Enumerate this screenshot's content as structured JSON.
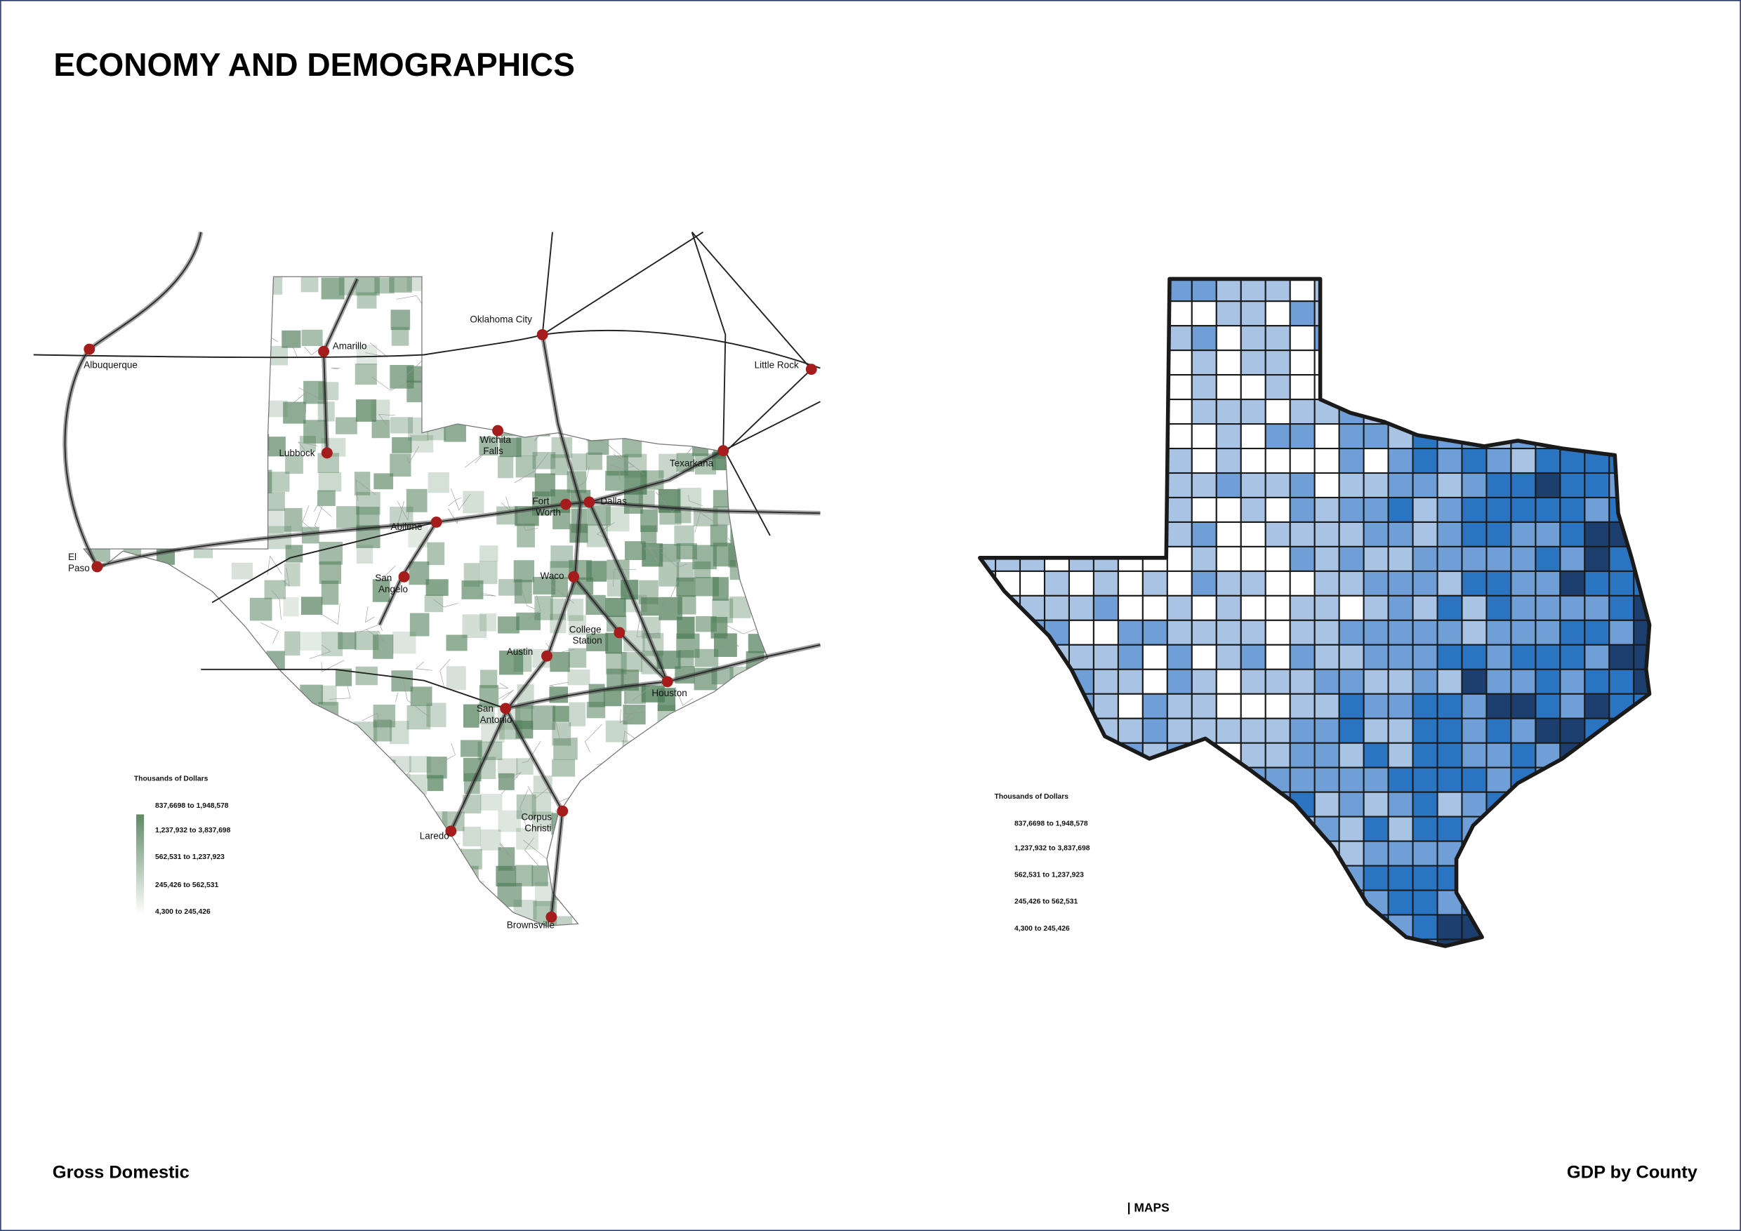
{
  "header": {
    "title": "ECONOMY AND DEMOGRAPHICS"
  },
  "left_map": {
    "caption": "Gross Domestic",
    "cities": [
      {
        "name": [
          "Albuquerque"
        ]
      },
      {
        "name": [
          "Amarillo"
        ]
      },
      {
        "name": [
          "Oklahoma City"
        ]
      },
      {
        "name": [
          "Little Rock"
        ]
      },
      {
        "name": [
          "Lubbock"
        ]
      },
      {
        "name": [
          "Wichita",
          "Falls"
        ]
      },
      {
        "name": [
          "Texarkana"
        ]
      },
      {
        "name": [
          "Fort",
          "Worth"
        ]
      },
      {
        "name": [
          "Dallas"
        ]
      },
      {
        "name": [
          "Abilene"
        ]
      },
      {
        "name": [
          "El",
          "Paso"
        ]
      },
      {
        "name": [
          "Waco"
        ]
      },
      {
        "name": [
          "San",
          "Angelo"
        ]
      },
      {
        "name": [
          "College",
          "Station"
        ]
      },
      {
        "name": [
          "Austin"
        ]
      },
      {
        "name": [
          "Houston"
        ]
      },
      {
        "name": [
          "San",
          "Antonio"
        ]
      },
      {
        "name": [
          "Corpus",
          "Christi"
        ]
      },
      {
        "name": [
          "Laredo"
        ]
      },
      {
        "name": [
          "Brownsville"
        ]
      }
    ],
    "legend": {
      "title": "Thousands of Dollars",
      "entries": [
        "837,6698 to 1,948,578",
        "1,237,932 to 3,837,698",
        "562,531 to 1,237,923",
        "245,426 to 562,531",
        "4,300 to 245,426"
      ]
    }
  },
  "right_map": {
    "caption": "GDP by County",
    "legend": {
      "title": "Thousands of Dollars",
      "entries": [
        "837,6698 to 1,948,578",
        "1,237,932 to 3,837,698",
        "562,531 to 1,237,923",
        "245,426 to 562,531",
        "4,300 to 245,426"
      ]
    }
  },
  "footer": {
    "section": "| MAPS"
  }
}
